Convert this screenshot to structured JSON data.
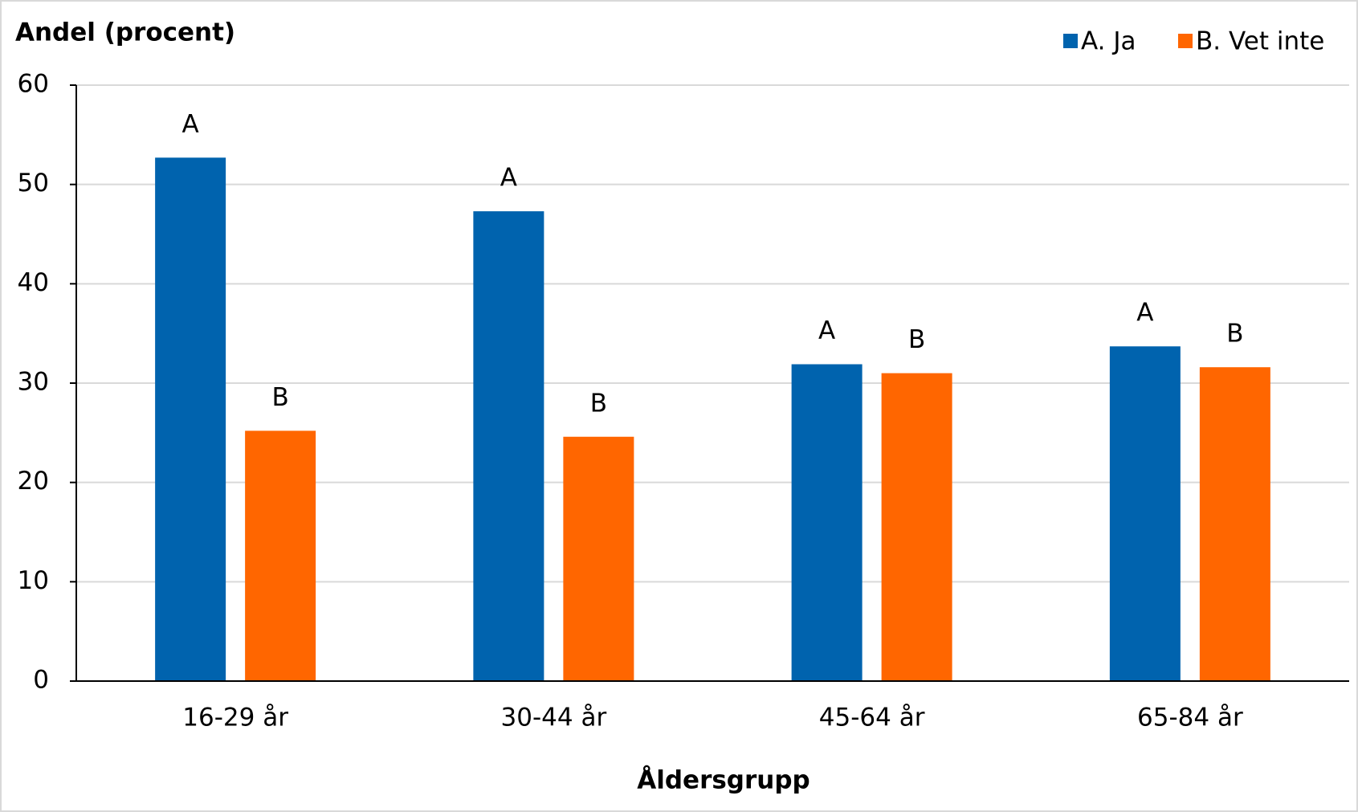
{
  "chart_data": {
    "type": "bar",
    "title": "Andel (procent)",
    "x_label": "Åldersgrupp",
    "categories": [
      "16-29 år",
      "30-44 år",
      "45-64 år",
      "65-84 år"
    ],
    "series": [
      {
        "name": "A. Ja",
        "color": "#0063ae",
        "values": [
          52.7,
          47.3,
          31.9,
          33.7
        ],
        "bar_labels": [
          "A",
          "A",
          "A",
          "A"
        ]
      },
      {
        "name": "B. Vet inte",
        "color": "#ff6600",
        "values": [
          25.2,
          24.6,
          31.0,
          31.6
        ],
        "bar_labels": [
          "B",
          "B",
          "B",
          "B"
        ]
      }
    ],
    "ylim": [
      0,
      60
    ],
    "yticks": [
      0,
      10,
      20,
      30,
      40,
      50,
      60
    ],
    "grid": true,
    "legend": "top-right"
  }
}
